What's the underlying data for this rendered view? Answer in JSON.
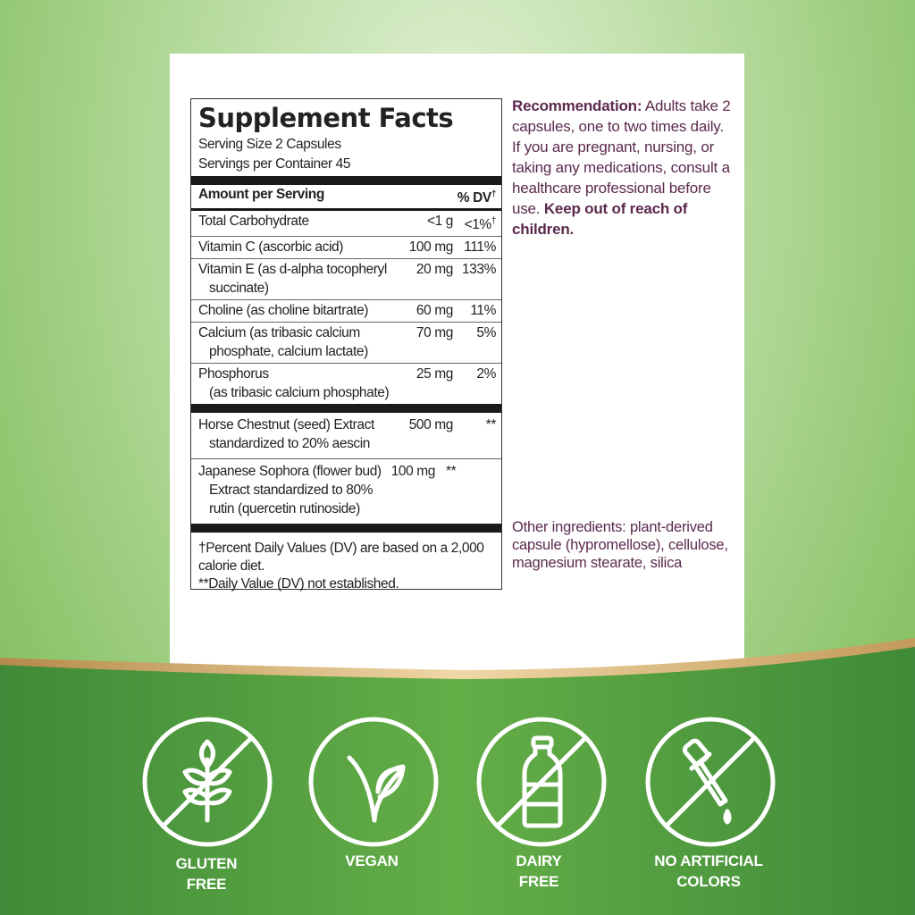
{
  "facts": {
    "title": "Supplement Facts",
    "serving_size": "Serving Size 2 Capsules",
    "servings_per_container": "Servings per Container 45",
    "amount_header": "Amount per Serving",
    "dv_header": "% DV",
    "dagger": "†",
    "rows": [
      {
        "name": "Total Carbohydrate",
        "sub": "",
        "amount": "<1 g",
        "dv": "<1%"
      },
      {
        "name": "Vitamin C (ascorbic acid)",
        "sub": "",
        "amount": "100 mg",
        "dv": "111%"
      },
      {
        "name": "Vitamin E (as d-alpha tocopheryl",
        "sub": "succinate)",
        "amount": "20 mg",
        "dv": "133%"
      },
      {
        "name": "Choline (as choline bitartrate)",
        "sub": "",
        "amount": "60 mg",
        "dv": "11%"
      },
      {
        "name": "Calcium (as tribasic calcium",
        "sub": "phosphate, calcium lactate)",
        "amount": "70 mg",
        "dv": "5%"
      },
      {
        "name": "Phosphorus",
        "sub": "(as tribasic calcium phosphate)",
        "amount": "25 mg",
        "dv": "2%"
      }
    ],
    "herbals": [
      {
        "name": "Horse Chestnut (seed) Extract",
        "sub": "standardized to 20% aescin",
        "sub2": "",
        "amount": "500 mg",
        "dv": "**"
      },
      {
        "name": "Japanese Sophora (flower bud)",
        "sub": "Extract standardized to 80%",
        "sub2": "rutin (quercetin rutinoside)",
        "amount": "100 mg",
        "dv": "**"
      }
    ],
    "footnote1": "†Percent Daily Values (DV) are based on a 2,000 calorie diet.",
    "footnote2": "**Daily Value (DV) not established."
  },
  "recommendation": {
    "label": "Recommendation:",
    "text": " Adults take 2 capsules, one to two times daily. If you are pregnant, nursing, or taking any medications, consult a healthcare professional before use. ",
    "warning": "Keep out of reach of children."
  },
  "other_ingredients": "Other ingredients: plant-derived capsule (hypromellose), cellulose, magnesium stearate, silica",
  "badges": [
    {
      "icon": "wheat-icon",
      "line1": "GLUTEN",
      "line2": "FREE"
    },
    {
      "icon": "leaf-icon",
      "line1": "VEGAN",
      "line2": ""
    },
    {
      "icon": "milk-bottle-icon",
      "line1": "DAIRY",
      "line2": "FREE"
    },
    {
      "icon": "dropper-icon",
      "line1": "NO ARTIFICIAL",
      "line2": "COLORS"
    }
  ],
  "colors": {
    "text_purple": "#5b2a4d",
    "green": "#4f9a3c",
    "gold": "#d9b27a"
  }
}
